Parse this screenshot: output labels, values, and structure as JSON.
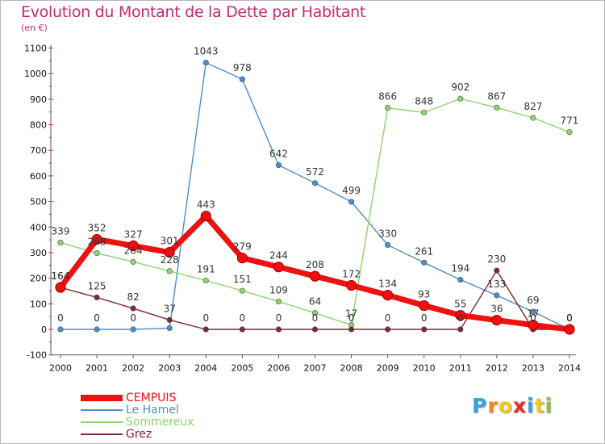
{
  "title": "Evolution du Montant de la Dette par Habitant",
  "unit": "(en €)",
  "logo": {
    "letters": [
      "P",
      "r",
      "o",
      "x",
      "i",
      "t",
      "i"
    ],
    "colors": [
      "#3aa2d8",
      "#f08a1c",
      "#f4c81e",
      "#e0302a",
      "#3aa2d8",
      "#f4c81e",
      "#8ac43a"
    ]
  },
  "chart_data": {
    "type": "line",
    "categories": [
      "2000",
      "2001",
      "2002",
      "2003",
      "2004",
      "2005",
      "2006",
      "2007",
      "2008",
      "2009",
      "2010",
      "2011",
      "2012",
      "2013",
      "2014"
    ],
    "ylim": [
      -100,
      1100
    ],
    "yticks": [
      -100,
      0,
      100,
      200,
      300,
      400,
      500,
      600,
      700,
      800,
      900,
      1000,
      1100
    ],
    "grid": false,
    "legend": "bottom-left",
    "series": [
      {
        "name": "Le Hamel",
        "color": "#4d8ec8",
        "values": [
          0,
          0,
          0,
          5,
          1043,
          978,
          642,
          572,
          499,
          330,
          261,
          194,
          133,
          69,
          0
        ],
        "labels": [
          "0",
          "0",
          "0",
          "",
          "1043",
          "978",
          "642",
          "572",
          "499",
          "330",
          "261",
          "194",
          "133",
          "69",
          "0"
        ]
      },
      {
        "name": "Sommereux",
        "color": "#8cd66a",
        "values": [
          339,
          298,
          264,
          228,
          191,
          151,
          109,
          64,
          17,
          866,
          848,
          902,
          867,
          827,
          771
        ],
        "labels": [
          "339",
          "298",
          "264",
          "228",
          "191",
          "151",
          "109",
          "64",
          "17",
          "866",
          "848",
          "902",
          "867",
          "827",
          "771"
        ]
      },
      {
        "name": "Grez",
        "color": "#7a2a32",
        "values": [
          164,
          125,
          82,
          37,
          0,
          0,
          0,
          0,
          0,
          0,
          0,
          0,
          230,
          0,
          0
        ],
        "labels": [
          "164",
          "125",
          "82",
          "37",
          "0",
          "0",
          "0",
          "0",
          "0",
          "0",
          "0",
          "0",
          "230",
          "0",
          "0"
        ]
      },
      {
        "name": "CEMPUIS",
        "color": "#ee1111",
        "values": [
          164,
          352,
          327,
          301,
          443,
          279,
          244,
          208,
          172,
          134,
          93,
          55,
          36,
          17,
          0
        ],
        "labels": [
          "164",
          "352",
          "327",
          "301",
          "443",
          "279",
          "244",
          "208",
          "172",
          "134",
          "93",
          "55",
          "36",
          "17",
          "0"
        ]
      }
    ],
    "legend_order": [
      "CEMPUIS",
      "Le Hamel",
      "Sommereux",
      "Grez"
    ]
  }
}
